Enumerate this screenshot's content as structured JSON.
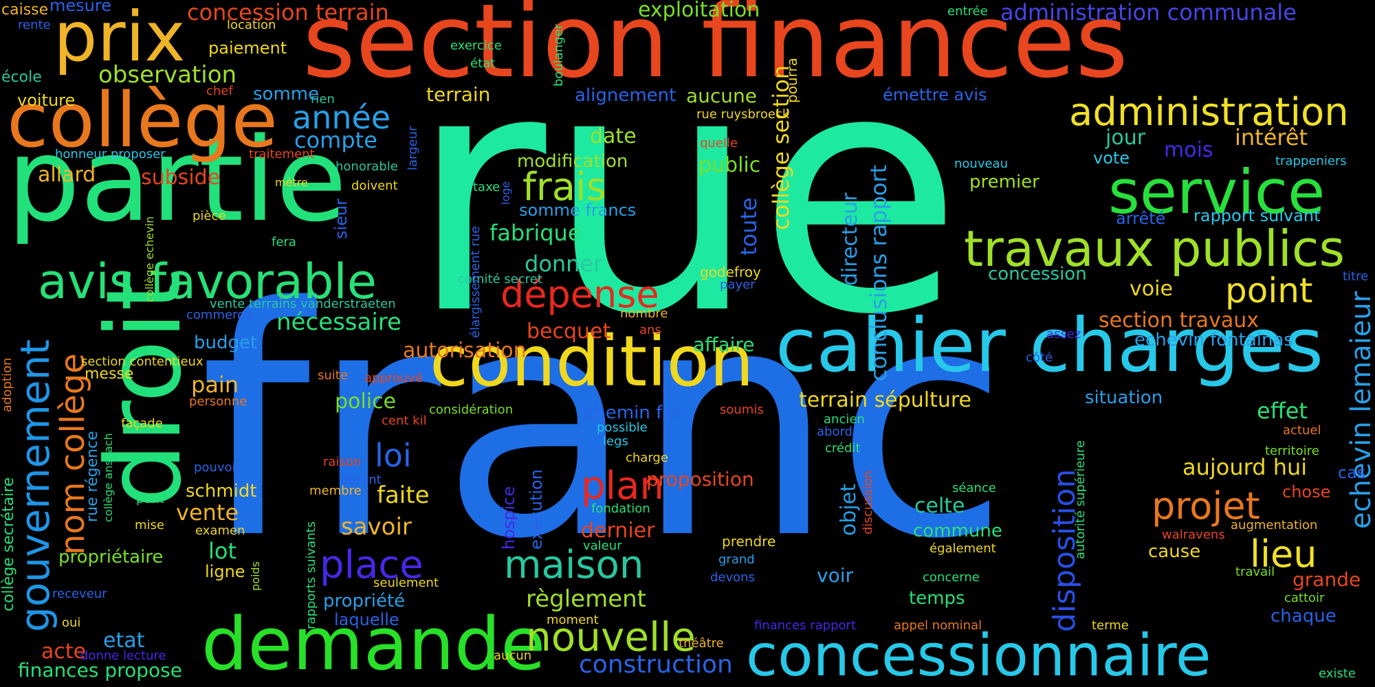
{
  "words": [
    {
      "text": "rue",
      "color": "#1de9a0"
    },
    {
      "text": "franc",
      "color": "#1e6ee6"
    },
    {
      "text": "section finances",
      "color": "#e8461e"
    },
    {
      "text": "partie",
      "color": "#22e07a"
    },
    {
      "text": "droit",
      "color": "#22e07a"
    },
    {
      "text": "collège",
      "color": "#e8781e"
    },
    {
      "text": "prix",
      "color": "#f0b428"
    },
    {
      "text": "condition",
      "color": "#f0d81e"
    },
    {
      "text": "cahier charges",
      "color": "#28c8e8"
    },
    {
      "text": "demande",
      "color": "#28e028"
    },
    {
      "text": "concessionnaire",
      "color": "#28c8e8"
    },
    {
      "text": "service",
      "color": "#28e03c"
    },
    {
      "text": "travaux publics",
      "color": "#a0e028"
    },
    {
      "text": "administration",
      "color": "#f0e028"
    },
    {
      "text": "avis favorable",
      "color": "#28e078"
    },
    {
      "text": "gouvernement",
      "color": "#1e96e8"
    },
    {
      "text": "nom collège",
      "color": "#e8781e"
    },
    {
      "text": "année",
      "color": "#28a0e8"
    },
    {
      "text": "compte",
      "color": "#28a0e8"
    },
    {
      "text": "observation",
      "color": "#a0e028"
    },
    {
      "text": "concession terrain",
      "color": "#e8461e"
    },
    {
      "text": "exploitation",
      "color": "#78e028"
    },
    {
      "text": "administration communale",
      "color": "#4646e8"
    },
    {
      "text": "frais",
      "color": "#a0e028"
    },
    {
      "text": "dépense",
      "color": "#e8281e"
    },
    {
      "text": "nouvelle",
      "color": "#a0e028"
    },
    {
      "text": "maison",
      "color": "#28c8a0"
    },
    {
      "text": "place",
      "color": "#4628e8"
    },
    {
      "text": "plan",
      "color": "#e8281e"
    },
    {
      "text": "projet",
      "color": "#e8781e"
    },
    {
      "text": "lieu",
      "color": "#f0e028"
    },
    {
      "text": "point",
      "color": "#f0e028"
    },
    {
      "text": "echevin lemaieur",
      "color": "#28a0e8"
    },
    {
      "text": "disposition",
      "color": "#2850e8"
    },
    {
      "text": "conclusions rapport",
      "color": "#28a0e8"
    },
    {
      "text": "collège section",
      "color": "#f0d81e"
    },
    {
      "text": "loi",
      "color": "#2864e8"
    },
    {
      "text": "savoir",
      "color": "#f0b428"
    },
    {
      "text": "faite",
      "color": "#f0d81e"
    },
    {
      "text": "construction",
      "color": "#2864e8"
    },
    {
      "text": "règlement",
      "color": "#a0e028"
    },
    {
      "text": "fabrique",
      "color": "#28e078"
    },
    {
      "text": "donner",
      "color": "#28c8a0"
    },
    {
      "text": "nécessaire",
      "color": "#28e078"
    },
    {
      "text": "autorisation",
      "color": "#e8781e"
    },
    {
      "text": "becquet",
      "color": "#e8461e"
    },
    {
      "text": "police",
      "color": "#78e028"
    },
    {
      "text": "pain",
      "color": "#f0b428"
    },
    {
      "text": "vente",
      "color": "#f0b428"
    },
    {
      "text": "lot",
      "color": "#28e078"
    },
    {
      "text": "acte",
      "color": "#e8461e"
    },
    {
      "text": "etat",
      "color": "#28a0e8"
    },
    {
      "text": "finances propose",
      "color": "#28e078"
    },
    {
      "text": "propriétaire",
      "color": "#78e028"
    },
    {
      "text": "ligne",
      "color": "#f0d81e"
    },
    {
      "text": "schmidt",
      "color": "#f0d81e"
    },
    {
      "text": "budget",
      "color": "#28a0e8"
    },
    {
      "text": "allard",
      "color": "#f0b428"
    },
    {
      "text": "subside",
      "color": "#e8461e"
    },
    {
      "text": "voiture",
      "color": "#f0d81e"
    },
    {
      "text": "caisse",
      "color": "#f0b428"
    },
    {
      "text": "mesure",
      "color": "#2864e8"
    },
    {
      "text": "rente",
      "color": "#2864e8"
    },
    {
      "text": "école",
      "color": "#28c8a0"
    },
    {
      "text": "paiement",
      "color": "#f0d81e"
    },
    {
      "text": "location",
      "color": "#f0d81e"
    },
    {
      "text": "exercice",
      "color": "#28e078"
    },
    {
      "text": "état",
      "color": "#28e078"
    },
    {
      "text": "chef",
      "color": "#e8461e"
    },
    {
      "text": "rien",
      "color": "#28c8a0"
    },
    {
      "text": "somme",
      "color": "#28a0e8"
    },
    {
      "text": "honneur proposer",
      "color": "#28c8e8"
    },
    {
      "text": "traitement",
      "color": "#e8461e"
    },
    {
      "text": "honorable",
      "color": "#28c8a0"
    },
    {
      "text": "mètre",
      "color": "#f0d81e"
    },
    {
      "text": "doivent",
      "color": "#f0d81e"
    },
    {
      "text": "pièce",
      "color": "#f0d81e"
    },
    {
      "text": "fera",
      "color": "#28e078"
    },
    {
      "text": "sieur",
      "color": "#2864e8"
    },
    {
      "text": "largeur",
      "color": "#2864e8"
    },
    {
      "text": "collège echevin",
      "color": "#a0e028"
    },
    {
      "text": "vente terrains vanderstraeten",
      "color": "#28c8a0"
    },
    {
      "text": "commerce",
      "color": "#2864e8"
    },
    {
      "text": "section contentieux",
      "color": "#f0d81e"
    },
    {
      "text": "messe",
      "color": "#f0d81e"
    },
    {
      "text": "adoption",
      "color": "#e8781e"
    },
    {
      "text": "collège secrétaire",
      "color": "#28e078"
    },
    {
      "text": "collège anspach",
      "color": "#28e078"
    },
    {
      "text": "rue régence",
      "color": "#28a0e8"
    },
    {
      "text": "façade",
      "color": "#f0d81e"
    },
    {
      "text": "personne",
      "color": "#e8781e"
    },
    {
      "text": "suite",
      "color": "#e8781e"
    },
    {
      "text": "approuvé",
      "color": "#e8461e"
    },
    {
      "text": "considération",
      "color": "#78e028"
    },
    {
      "text": "cent kil",
      "color": "#e8461e"
    },
    {
      "text": "pouvoir",
      "color": "#2864e8"
    },
    {
      "text": "raison",
      "color": "#e8461e"
    },
    {
      "text": "durant",
      "color": "#2864e8"
    },
    {
      "text": "membre",
      "color": "#f0b428"
    },
    {
      "text": "pont",
      "color": "#28e078"
    },
    {
      "text": "mise",
      "color": "#f0d81e"
    },
    {
      "text": "examen",
      "color": "#f0d81e"
    },
    {
      "text": "receveur",
      "color": "#2864e8"
    },
    {
      "text": "oui",
      "color": "#f0d81e"
    },
    {
      "text": "donne lecture",
      "color": "#4628e8"
    },
    {
      "text": "poids",
      "color": "#a0e028"
    },
    {
      "text": "rapports suivants",
      "color": "#28e078"
    },
    {
      "text": "propriété",
      "color": "#28a0e8"
    },
    {
      "text": "laquelle",
      "color": "#2864e8"
    },
    {
      "text": "seulement",
      "color": "#f0d81e"
    },
    {
      "text": "moment",
      "color": "#f0d81e"
    },
    {
      "text": "aucun",
      "color": "#f0d81e"
    },
    {
      "text": "théâtre",
      "color": "#f0b428"
    },
    {
      "text": "valeur",
      "color": "#28e078"
    },
    {
      "text": "hospice",
      "color": "#4628e8"
    },
    {
      "text": "exécution",
      "color": "#2864e8"
    },
    {
      "text": "dernier",
      "color": "#e8461e"
    },
    {
      "text": "fondation",
      "color": "#28e078"
    },
    {
      "text": "charge",
      "color": "#f0d81e"
    },
    {
      "text": "legs",
      "color": "#28c8e8"
    },
    {
      "text": "possible",
      "color": "#28c8e8"
    },
    {
      "text": "chemin fer",
      "color": "#2864e8"
    },
    {
      "text": "soumis",
      "color": "#e8461e"
    },
    {
      "text": "proposition",
      "color": "#e8461e"
    },
    {
      "text": "comité secret",
      "color": "#28c8a0"
    },
    {
      "text": "élargissement rue",
      "color": "#2864e8"
    },
    {
      "text": "nombre",
      "color": "#f0b428"
    },
    {
      "text": "ans",
      "color": "#e8461e"
    },
    {
      "text": "taxe",
      "color": "#28e078"
    },
    {
      "text": "loge",
      "color": "#2864e8"
    },
    {
      "text": "godefroy",
      "color": "#f0d81e"
    },
    {
      "text": "payer",
      "color": "#2864e8"
    },
    {
      "text": "affaire",
      "color": "#28e078"
    },
    {
      "text": "modification",
      "color": "#a0e028"
    },
    {
      "text": "somme francs",
      "color": "#28a0e8"
    },
    {
      "text": "date",
      "color": "#a0e028"
    },
    {
      "text": "alignement",
      "color": "#2864e8"
    },
    {
      "text": "aucune",
      "color": "#a0e028"
    },
    {
      "text": "terrain",
      "color": "#f0d81e"
    },
    {
      "text": "boulanger",
      "color": "#28e078"
    },
    {
      "text": "toute",
      "color": "#2864e8"
    },
    {
      "text": "public",
      "color": "#78e028"
    },
    {
      "text": "rue ruysbroeck",
      "color": "#f0d81e"
    },
    {
      "text": "quelle",
      "color": "#e8461e"
    },
    {
      "text": "pourra",
      "color": "#f0d81e"
    },
    {
      "text": "directeur",
      "color": "#28a0e8"
    },
    {
      "text": "concession",
      "color": "#28c8a0"
    },
    {
      "text": "premier",
      "color": "#a0e028"
    },
    {
      "text": "nouveau",
      "color": "#28c8e8"
    },
    {
      "text": "émettre avis",
      "color": "#2864e8"
    },
    {
      "text": "entrée",
      "color": "#28e078"
    },
    {
      "text": "jour",
      "color": "#28c8a0"
    },
    {
      "text": "intérêt",
      "color": "#f0b428"
    },
    {
      "text": "mois",
      "color": "#4628e8"
    },
    {
      "text": "vote",
      "color": "#28c8e8"
    },
    {
      "text": "trappeniers",
      "color": "#28c8e8"
    },
    {
      "text": "rapport suivant",
      "color": "#28c8e8"
    },
    {
      "text": "arrêté",
      "color": "#2864e8"
    },
    {
      "text": "titre",
      "color": "#2864e8"
    },
    {
      "text": "voie",
      "color": "#f0d81e"
    },
    {
      "text": "section travaux",
      "color": "#e8781e"
    },
    {
      "text": "echevin fontainas",
      "color": "#28a0e8"
    },
    {
      "text": "assez",
      "color": "#4628e8"
    },
    {
      "text": "côté",
      "color": "#2864e8"
    },
    {
      "text": "situation",
      "color": "#28a0e8"
    },
    {
      "text": "terrain sépulture",
      "color": "#f0d81e"
    },
    {
      "text": "ancien",
      "color": "#28e078"
    },
    {
      "text": "abord",
      "color": "#2864e8"
    },
    {
      "text": "crédit",
      "color": "#28e078"
    },
    {
      "text": "effet",
      "color": "#28e078"
    },
    {
      "text": "actuel",
      "color": "#e8781e"
    },
    {
      "text": "territoire",
      "color": "#78e028"
    },
    {
      "text": "aujourd hui",
      "color": "#f0d81e"
    },
    {
      "text": "cas",
      "color": "#2864e8"
    },
    {
      "text": "autorité supérieure",
      "color": "#28e078"
    },
    {
      "text": "séance",
      "color": "#28e078"
    },
    {
      "text": "celte",
      "color": "#28c8a0"
    },
    {
      "text": "objet",
      "color": "#28a0e8"
    },
    {
      "text": "discussion",
      "color": "#e8461e"
    },
    {
      "text": "chose",
      "color": "#e8461e"
    },
    {
      "text": "commune",
      "color": "#28e078"
    },
    {
      "text": "augmentation",
      "color": "#f0b428"
    },
    {
      "text": "walravens",
      "color": "#e8461e"
    },
    {
      "text": "prendre",
      "color": "#f0d81e"
    },
    {
      "text": "grand",
      "color": "#28a0e8"
    },
    {
      "text": "devons",
      "color": "#2864e8"
    },
    {
      "text": "voir",
      "color": "#28a0e8"
    },
    {
      "text": "cause",
      "color": "#f0d81e"
    },
    {
      "text": "également",
      "color": "#f0d81e"
    },
    {
      "text": "concerne",
      "color": "#28e078"
    },
    {
      "text": "temps",
      "color": "#28e078"
    },
    {
      "text": "travail",
      "color": "#78e028"
    },
    {
      "text": "grande",
      "color": "#e8461e"
    },
    {
      "text": "cattoir",
      "color": "#78e028"
    },
    {
      "text": "chaque",
      "color": "#2864e8"
    },
    {
      "text": "finances rapport",
      "color": "#4628e8"
    },
    {
      "text": "appel nominal",
      "color": "#e8781e"
    },
    {
      "text": "terme",
      "color": "#f0d81e"
    },
    {
      "text": "existe",
      "color": "#28e078"
    }
  ]
}
